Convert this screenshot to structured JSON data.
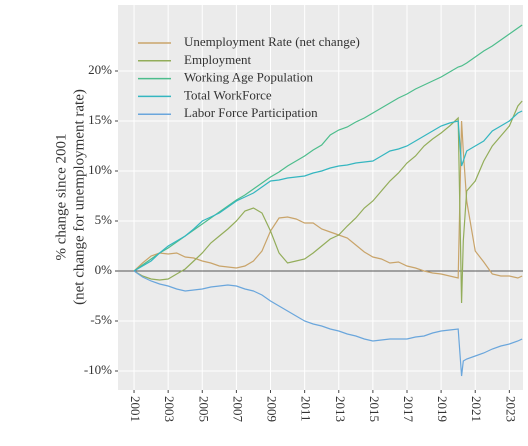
{
  "chart_data": {
    "type": "line",
    "ylabel": [
      "% change since 2001",
      "(net change for unemployment rate)"
    ],
    "x": [
      2001,
      2001.5,
      2002,
      2002.5,
      2003,
      2003.5,
      2004,
      2004.5,
      2005,
      2005.5,
      2006,
      2006.5,
      2007,
      2007.5,
      2008,
      2008.5,
      2009,
      2009.5,
      2010,
      2010.5,
      2011,
      2011.5,
      2012,
      2012.5,
      2013,
      2013.5,
      2014,
      2014.5,
      2015,
      2015.5,
      2016,
      2016.5,
      2017,
      2017.5,
      2018,
      2018.5,
      2019,
      2019.5,
      2020,
      2020.2,
      2020.3,
      2020.5,
      2021,
      2021.5,
      2022,
      2022.5,
      2023,
      2023.5,
      2023.75
    ],
    "series": [
      {
        "name": "Unemployment Rate (net change)",
        "color": "#c9a46a",
        "values": [
          0,
          0.8,
          1.5,
          1.8,
          1.7,
          1.8,
          1.4,
          1.3,
          1.0,
          0.8,
          0.5,
          0.4,
          0.3,
          0.5,
          1.0,
          2.0,
          4.0,
          5.3,
          5.4,
          5.2,
          4.8,
          4.8,
          4.2,
          3.9,
          3.6,
          3.3,
          2.6,
          1.9,
          1.4,
          1.2,
          0.8,
          0.9,
          0.5,
          0.3,
          0.0,
          -0.2,
          -0.3,
          -0.5,
          -0.7,
          15.0,
          12.0,
          7.0,
          2.0,
          0.9,
          -0.3,
          -0.5,
          -0.5,
          -0.7,
          -0.5
        ]
      },
      {
        "name": "Employment",
        "color": "#93ad5a",
        "values": [
          0,
          -0.5,
          -0.8,
          -0.9,
          -0.8,
          -0.3,
          0.2,
          1.0,
          1.8,
          2.8,
          3.5,
          4.2,
          5.0,
          6.0,
          6.3,
          5.8,
          4.0,
          1.8,
          0.8,
          1.0,
          1.2,
          1.8,
          2.5,
          3.2,
          3.6,
          4.5,
          5.3,
          6.3,
          7.0,
          8.0,
          9.0,
          9.8,
          10.8,
          11.5,
          12.5,
          13.2,
          13.8,
          14.5,
          15.3,
          -3.2,
          3.0,
          8.0,
          9.0,
          11.0,
          12.5,
          13.5,
          14.5,
          16.5,
          17.0
        ]
      },
      {
        "name": "Working Age Population",
        "color": "#4dbd8c",
        "values": [
          0,
          0.6,
          1.2,
          1.8,
          2.3,
          2.9,
          3.5,
          4.1,
          4.7,
          5.3,
          5.9,
          6.5,
          7.1,
          7.6,
          8.2,
          8.8,
          9.4,
          9.9,
          10.5,
          11.0,
          11.5,
          12.1,
          12.6,
          13.6,
          14.1,
          14.4,
          14.9,
          15.3,
          15.8,
          16.3,
          16.8,
          17.3,
          17.7,
          18.2,
          18.6,
          19.0,
          19.4,
          19.9,
          20.4,
          20.5,
          20.6,
          20.8,
          21.4,
          22.0,
          22.5,
          23.1,
          23.7,
          24.3,
          24.6
        ]
      },
      {
        "name": "Total WorkForce",
        "color": "#34b6c0",
        "values": [
          0,
          0.5,
          1.0,
          1.8,
          2.5,
          3.0,
          3.5,
          4.2,
          5.0,
          5.4,
          5.8,
          6.4,
          7.0,
          7.4,
          7.8,
          8.4,
          9.0,
          9.1,
          9.3,
          9.4,
          9.5,
          9.8,
          10.0,
          10.3,
          10.5,
          10.6,
          10.8,
          10.9,
          11.0,
          11.5,
          12.0,
          12.2,
          12.5,
          13.0,
          13.5,
          14.0,
          14.5,
          14.8,
          15.0,
          10.5,
          11.0,
          12.0,
          12.5,
          13.0,
          14.0,
          14.5,
          15.0,
          15.8,
          16.0
        ]
      },
      {
        "name": "Labor Force Participation",
        "color": "#6aa6dc",
        "values": [
          0,
          -0.6,
          -1.0,
          -1.3,
          -1.5,
          -1.8,
          -2.0,
          -1.9,
          -1.8,
          -1.6,
          -1.5,
          -1.4,
          -1.5,
          -1.8,
          -2.0,
          -2.4,
          -3.0,
          -3.5,
          -4.0,
          -4.5,
          -5.0,
          -5.3,
          -5.5,
          -5.8,
          -6.0,
          -6.3,
          -6.5,
          -6.8,
          -7.0,
          -6.9,
          -6.8,
          -6.8,
          -6.8,
          -6.6,
          -6.5,
          -6.2,
          -6.0,
          -5.9,
          -5.8,
          -10.5,
          -9.0,
          -8.8,
          -8.5,
          -8.2,
          -7.8,
          -7.5,
          -7.3,
          -7.0,
          -6.8
        ]
      }
    ],
    "xlim": [
      2000.06,
      2023.8
    ],
    "xticks": [
      2001,
      2003,
      2005,
      2007,
      2009,
      2011,
      2013,
      2015,
      2017,
      2019,
      2021,
      2023
    ],
    "ylim": [
      -11.9,
      26.6
    ],
    "yticks": [
      {
        "value": -10,
        "label": "-10%"
      },
      {
        "value": -5,
        "label": "-5%"
      },
      {
        "value": 0,
        "label": "0%"
      },
      {
        "value": 5,
        "label": "5%"
      },
      {
        "value": 10,
        "label": "10%"
      },
      {
        "value": 15,
        "label": "15%"
      },
      {
        "value": 20,
        "label": "20%"
      }
    ],
    "hline": 0,
    "grid": true,
    "legend": "top-left"
  }
}
